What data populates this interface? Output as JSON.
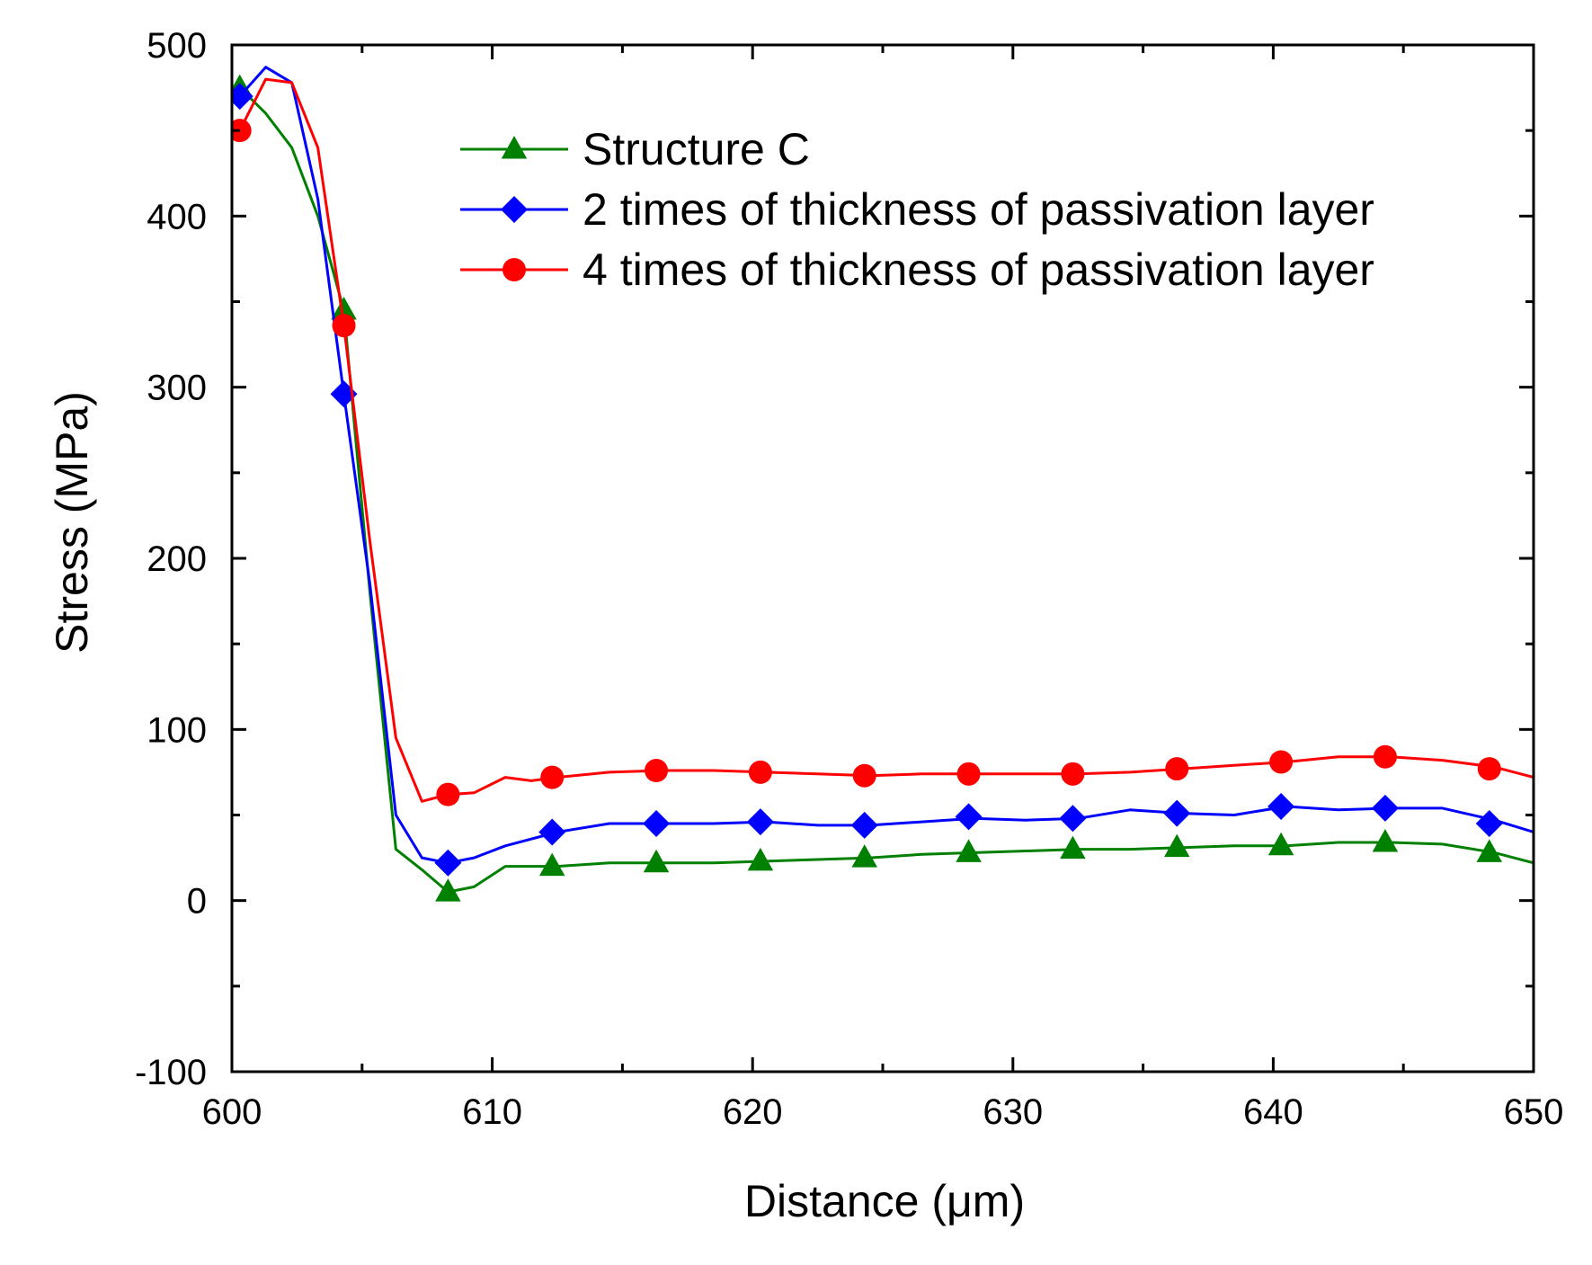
{
  "chart_data": {
    "type": "line",
    "title": "",
    "xlabel": "Distance (μm)",
    "ylabel": "Stress (MPa)",
    "xlim": [
      600,
      650
    ],
    "ylim": [
      -100,
      500
    ],
    "xticks": [
      600,
      610,
      620,
      630,
      640,
      650
    ],
    "yticks": [
      -100,
      0,
      100,
      200,
      300,
      400,
      500
    ],
    "xtick_labels": [
      "600",
      "610",
      "620",
      "630",
      "640",
      "650"
    ],
    "ytick_labels": [
      "-100",
      "0",
      "100",
      "200",
      "300",
      "400",
      "500"
    ],
    "grid": false,
    "legend_position": "top-right",
    "series": [
      {
        "name": "Structure C",
        "color": "#008000",
        "marker": "triangle",
        "x": [
          600.3,
          601.3,
          602.3,
          603.3,
          604.3,
          605.3,
          606.3,
          607.3,
          608.3,
          609.3,
          610.5,
          612.5,
          614.5,
          616.5,
          618.5,
          620.5,
          622.5,
          624.5,
          626.5,
          628.5,
          630.5,
          632.5,
          634.5,
          636.5,
          638.5,
          640.5,
          642.5,
          644.5,
          646.5,
          648.5,
          650
        ],
        "y": [
          475,
          460,
          440,
          400,
          345,
          180,
          30,
          18,
          5,
          8,
          20,
          20,
          22,
          22,
          22,
          23,
          24,
          25,
          27,
          28,
          29,
          30,
          30,
          31,
          32,
          32,
          34,
          34,
          33,
          28,
          22
        ],
        "marker_x": [
          600.3,
          604.3,
          608.3,
          612.3,
          616.3,
          620.3,
          624.3,
          628.3,
          632.3,
          636.3,
          640.3,
          644.3,
          648.3
        ],
        "marker_y": [
          475,
          345,
          5,
          20,
          22,
          23,
          25,
          28,
          30,
          31,
          32,
          34,
          28
        ]
      },
      {
        "name": "2 times of thickness of passivation layer",
        "color": "#0000ff",
        "marker": "diamond",
        "x": [
          600.3,
          601.3,
          602.3,
          603.3,
          604.3,
          605.3,
          606.3,
          607.3,
          608.3,
          609.3,
          610.5,
          612.5,
          614.5,
          616.5,
          618.5,
          620.5,
          622.5,
          624.5,
          626.5,
          628.5,
          630.5,
          632.5,
          634.5,
          636.5,
          638.5,
          640.5,
          642.5,
          644.5,
          646.5,
          648.5,
          650
        ],
        "y": [
          470,
          487,
          478,
          410,
          296,
          185,
          50,
          25,
          22,
          25,
          32,
          40,
          45,
          45,
          45,
          46,
          44,
          44,
          46,
          48,
          47,
          48,
          53,
          51,
          50,
          55,
          53,
          54,
          54,
          47,
          40
        ],
        "marker_x": [
          600.3,
          604.3,
          608.3,
          612.3,
          616.3,
          620.3,
          624.3,
          628.3,
          632.3,
          636.3,
          640.3,
          644.3,
          648.3
        ],
        "marker_y": [
          470,
          296,
          22,
          40,
          45,
          46,
          44,
          49,
          48,
          51,
          55,
          54,
          45
        ]
      },
      {
        "name": "4 times of thickness of passivation layer",
        "color": "#ff0000",
        "marker": "circle",
        "x": [
          600.3,
          601.3,
          602.3,
          603.3,
          604.3,
          605.3,
          606.3,
          607.3,
          608.3,
          609.3,
          610.5,
          611.5,
          612.5,
          614.5,
          616.5,
          618.5,
          620.5,
          622.5,
          624.5,
          626.5,
          628.5,
          630.5,
          632.5,
          634.5,
          636.5,
          638.5,
          640.5,
          642.5,
          644.5,
          646.5,
          648.5,
          650
        ],
        "y": [
          450,
          480,
          478,
          440,
          336,
          210,
          95,
          58,
          62,
          63,
          72,
          70,
          72,
          75,
          76,
          76,
          75,
          74,
          73,
          74,
          74,
          74,
          74,
          75,
          77,
          79,
          81,
          84,
          84,
          82,
          78,
          72
        ],
        "marker_x": [
          600.3,
          604.3,
          608.3,
          612.3,
          616.3,
          620.3,
          624.3,
          628.3,
          632.3,
          636.3,
          640.3,
          644.3,
          648.3
        ],
        "marker_y": [
          450,
          336,
          62,
          72,
          76,
          75,
          73,
          74,
          74,
          77,
          81,
          84,
          77
        ]
      }
    ]
  }
}
